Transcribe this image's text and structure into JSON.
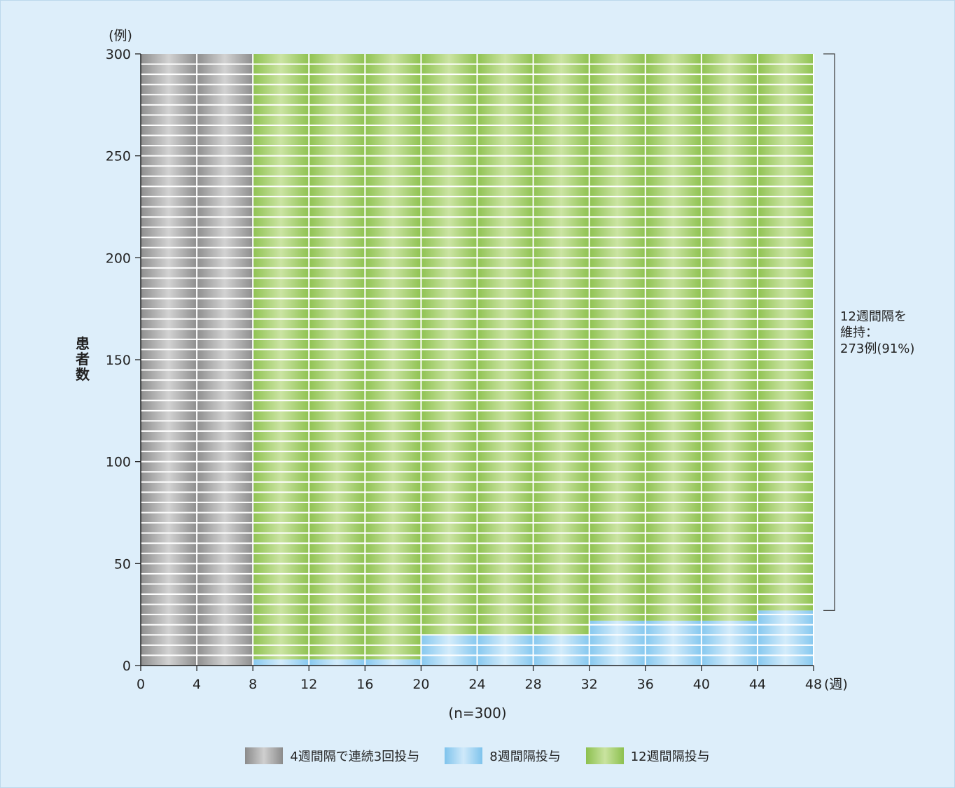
{
  "chart_data": {
    "type": "bar",
    "subtype": "stacked-columns",
    "y_unit_label": "(例)",
    "x_unit_label": "(週)",
    "ylabel": "患者数",
    "xlabel": "(n=300)",
    "ylim": [
      0,
      300
    ],
    "yticks": [
      0,
      50,
      100,
      150,
      200,
      250,
      300
    ],
    "xticks": [
      0,
      4,
      8,
      12,
      16,
      20,
      24,
      28,
      32,
      36,
      40,
      44,
      48
    ],
    "x_intervals": [
      [
        0,
        4
      ],
      [
        4,
        8
      ],
      [
        8,
        12
      ],
      [
        12,
        16
      ],
      [
        16,
        20
      ],
      [
        20,
        24
      ],
      [
        24,
        28
      ],
      [
        28,
        32
      ],
      [
        32,
        36
      ],
      [
        36,
        40
      ],
      [
        40,
        44
      ],
      [
        44,
        48
      ]
    ],
    "series": [
      {
        "name": "4週間隔で連続3回投与",
        "color": "#a9a9a9",
        "values": [
          300,
          300,
          0,
          0,
          0,
          0,
          0,
          0,
          0,
          0,
          0,
          0
        ]
      },
      {
        "name": "8週間隔投与",
        "color": "#a9d8f4",
        "values": [
          0,
          0,
          3,
          3,
          3,
          15,
          15,
          15,
          22,
          22,
          22,
          27
        ]
      },
      {
        "name": "12週間隔投与",
        "color": "#9fcc62",
        "values": [
          0,
          0,
          297,
          297,
          297,
          285,
          285,
          285,
          278,
          278,
          278,
          273
        ]
      }
    ],
    "grid": false,
    "legend_position": "bottom",
    "annotation": {
      "lines": [
        "12週間隔を",
        "維持：",
        "273例(91%)"
      ],
      "bracket_range": [
        27,
        300
      ]
    }
  }
}
